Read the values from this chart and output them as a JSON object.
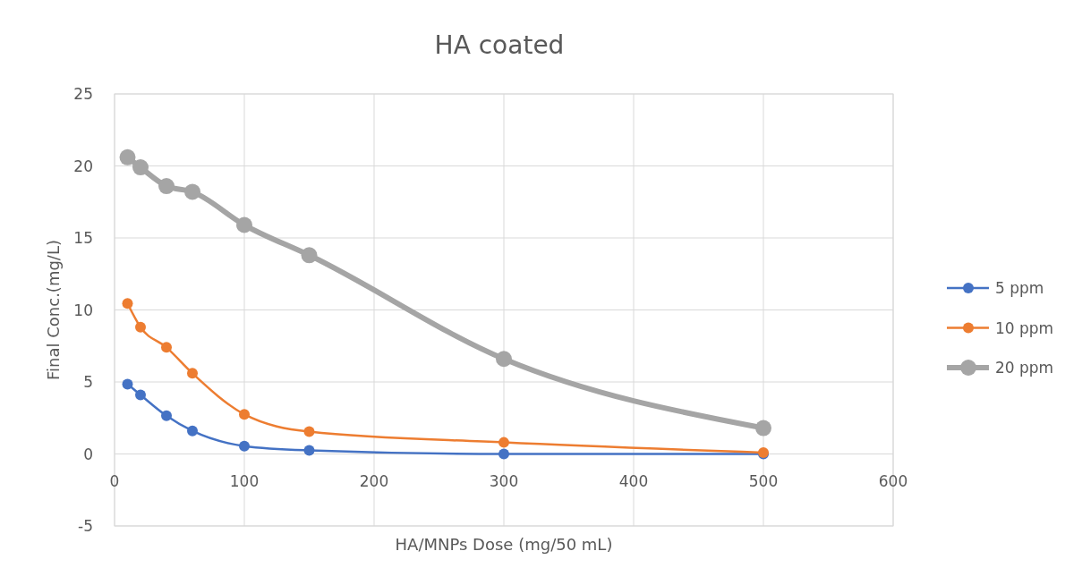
{
  "chart_data": {
    "type": "line",
    "title": "HA coated",
    "xlabel": "HA/MNPs Dose (mg/50 mL)",
    "ylabel": "Final Conc.(mg/L)",
    "x": [
      10,
      20,
      40,
      60,
      100,
      150,
      300,
      500
    ],
    "series": [
      {
        "name": "5 ppm",
        "color": "#4472c4",
        "values": [
          4.85,
          4.1,
          2.65,
          1.6,
          0.55,
          0.25,
          0,
          0
        ]
      },
      {
        "name": "10 ppm",
        "color": "#ed7d31",
        "values": [
          10.45,
          8.8,
          7.4,
          5.6,
          2.75,
          1.55,
          0.8,
          0.1
        ]
      },
      {
        "name": "20 ppm",
        "color": "#a5a5a5",
        "values": [
          20.6,
          19.9,
          18.6,
          18.2,
          15.9,
          13.8,
          6.6,
          1.8
        ]
      }
    ],
    "xlim": [
      0,
      600
    ],
    "xticks": [
      0,
      100,
      200,
      300,
      400,
      500,
      600
    ],
    "ylim": [
      -5,
      25
    ],
    "yticks": [
      -5,
      0,
      5,
      10,
      15,
      20,
      25
    ],
    "grid": true,
    "legend": "right",
    "marker": "circle",
    "line_style": "solid"
  }
}
